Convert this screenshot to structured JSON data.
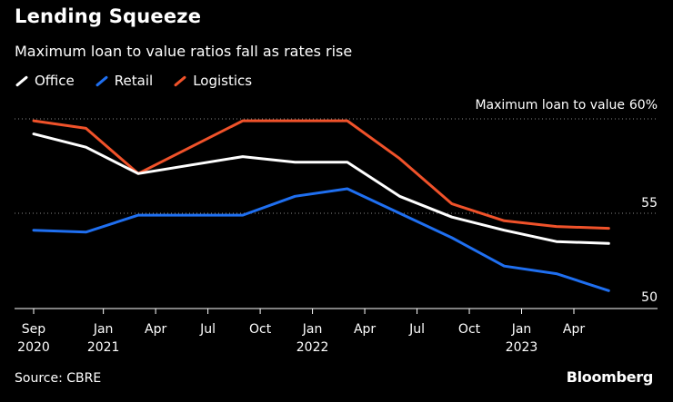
{
  "header": {
    "title": "Lending Squeeze",
    "subtitle": "Maximum loan to value ratios fall as rates rise"
  },
  "legend": [
    {
      "label": "Office",
      "color": "#ffffff"
    },
    {
      "label": "Retail",
      "color": "#1f6ff0"
    },
    {
      "label": "Logistics",
      "color": "#f0522a"
    }
  ],
  "footer": {
    "source": "Source: CBRE",
    "brand": "Bloomberg"
  },
  "chart_data": {
    "type": "line",
    "ylabel": "Maximum loan to value",
    "ylim": [
      49,
      61
    ],
    "y_ticks": [
      {
        "value": 60,
        "label": "60%"
      },
      {
        "value": 55,
        "label": "55"
      },
      {
        "value": 50,
        "label": "50"
      }
    ],
    "grid": "dotted horizontal at 55 and 60",
    "x_ticks": [
      {
        "date": "2020-09",
        "label": "Sep",
        "year": "2020"
      },
      {
        "date": "2021-01",
        "label": "Jan",
        "year": "2021"
      },
      {
        "date": "2021-04",
        "label": "Apr",
        "year": ""
      },
      {
        "date": "2021-07",
        "label": "Jul",
        "year": ""
      },
      {
        "date": "2021-10",
        "label": "Oct",
        "year": ""
      },
      {
        "date": "2022-01",
        "label": "Jan",
        "year": "2022"
      },
      {
        "date": "2022-04",
        "label": "Apr",
        "year": ""
      },
      {
        "date": "2022-07",
        "label": "Jul",
        "year": ""
      },
      {
        "date": "2022-10",
        "label": "Oct",
        "year": ""
      },
      {
        "date": "2023-01",
        "label": "Jan",
        "year": "2023"
      },
      {
        "date": "2023-04",
        "label": "Apr",
        "year": ""
      }
    ],
    "x": [
      "2020-09",
      "2020-12",
      "2021-03",
      "2021-09",
      "2021-12",
      "2022-03",
      "2022-06",
      "2022-09",
      "2022-12",
      "2023-03",
      "2023-06"
    ],
    "series": [
      {
        "name": "Office",
        "color": "#ffffff",
        "values": [
          59.2,
          58.5,
          57.1,
          58.0,
          57.7,
          57.7,
          55.9,
          54.8,
          54.1,
          53.5,
          53.4
        ]
      },
      {
        "name": "Retail",
        "color": "#1f6ff0",
        "values": [
          54.1,
          54.0,
          54.9,
          54.9,
          55.9,
          56.3,
          55.0,
          53.7,
          52.2,
          51.8,
          50.9
        ]
      },
      {
        "name": "Logistics",
        "color": "#f0522a",
        "values": [
          59.9,
          59.5,
          57.1,
          59.9,
          59.9,
          59.9,
          57.9,
          55.5,
          54.6,
          54.3,
          54.2
        ]
      }
    ]
  }
}
